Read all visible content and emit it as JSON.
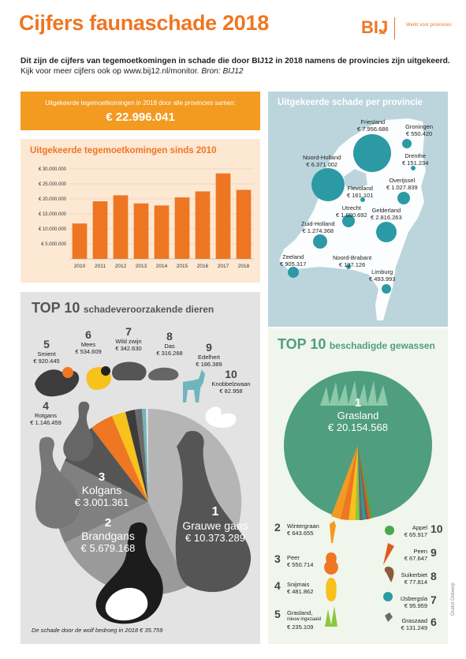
{
  "header": {
    "title": "Cijfers faunaschade 2018",
    "logo_text": "BIJ",
    "logo_sub": "12",
    "tagline": "Werkt voor provincies",
    "intro_line1": "Dit zijn de cijfers van tegemoetkomingen in schade die door BIJ12 in 2018 namens de provincies zijn uitgekeerd.",
    "intro_line2_plain": "Kijk voor meer cijfers ook op www.bij12.nl/monitor.",
    "intro_line2_italic": "Bron: BIJ12"
  },
  "total": {
    "label": "Uitgekeerde tegemoetkomingen in 2018 door alle provincies samen:",
    "value": "€ 22.996.041"
  },
  "colors": {
    "orange": "#ef7622",
    "bar": "#ee7623",
    "teal": "#2b9aa5",
    "green": "#4f9e7f"
  },
  "chart_data": {
    "type": "bar",
    "title": "Uitgekeerde tegemoetkomingen sinds 2010",
    "categories": [
      "2010",
      "2011",
      "2012",
      "2013",
      "2014",
      "2015",
      "2016",
      "2017",
      "2018"
    ],
    "values": [
      11800000,
      19200000,
      21200000,
      18500000,
      17800000,
      20500000,
      22500000,
      28500000,
      23000000
    ],
    "ylim": [
      0,
      30000000
    ],
    "yticks": [
      5000000,
      10000000,
      15000000,
      20000000,
      25000000,
      30000000
    ],
    "ytick_labels": [
      "€ 5.000.000",
      "€ 10.000.000",
      "€ 15.000.000",
      "€ 20.000.000",
      "€ 25.000.000",
      "€ 30.000.000"
    ],
    "grid": true
  },
  "map": {
    "title": "Uitgekeerde schade per provincie",
    "provinces": [
      {
        "name": "Friesland",
        "value": "€ 7.956.686"
      },
      {
        "name": "Groningen",
        "value": "€ 550.420"
      },
      {
        "name": "Drenthe",
        "value": "€ 151.234"
      },
      {
        "name": "Noord-Holland",
        "value": "€ 6.371.002"
      },
      {
        "name": "Flevoland",
        "value": "€ 161.101"
      },
      {
        "name": "Overijssel",
        "value": "€ 1.027.839"
      },
      {
        "name": "Utrecht",
        "value": "€ 1.090.692"
      },
      {
        "name": "Gelderland",
        "value": "€ 2.816.263"
      },
      {
        "name": "Zuid-Holland",
        "value": "€ 1.274.368"
      },
      {
        "name": "Zeeland",
        "value": "€ 905.317"
      },
      {
        "name": "Noord-Brabant",
        "value": "€ 197.126"
      },
      {
        "name": "Limburg",
        "value": "€ 493.993"
      }
    ]
  },
  "animals": {
    "title_bold": "TOP 10",
    "title_rest": "schadeveroorzakende dieren",
    "items": [
      {
        "rank": "1",
        "name": "Grauwe gans",
        "value": "€ 10.373.289"
      },
      {
        "rank": "2",
        "name": "Brandgans",
        "value": "€ 5.679.168"
      },
      {
        "rank": "3",
        "name": "Kolgans",
        "value": "€ 3.001.361"
      },
      {
        "rank": "4",
        "name": "Rotgans",
        "value": "€ 1.146.459"
      },
      {
        "rank": "5",
        "name": "Smient",
        "value": "€ 920.445"
      },
      {
        "rank": "6",
        "name": "Mees",
        "value": "€ 534.609"
      },
      {
        "rank": "7",
        "name": "Wild zwijn",
        "value": "€ 342.630"
      },
      {
        "rank": "8",
        "name": "Das",
        "value": "€ 316.268"
      },
      {
        "rank": "9",
        "name": "Edelhert",
        "value": "€ 186.389"
      },
      {
        "rank": "10",
        "name": "Knobbelzwaan",
        "value": "€ 82.958"
      }
    ],
    "footnote": "De schade door de wolf bedroeg in 2018 € 35.759"
  },
  "crops": {
    "title_bold": "TOP 10",
    "title_rest": "beschadigde gewassen",
    "items": [
      {
        "rank": "1",
        "name": "Grasland",
        "value": "€ 20.154.568"
      },
      {
        "rank": "2",
        "name": "Wintergraan",
        "value": "€ 643.655"
      },
      {
        "rank": "3",
        "name": "Peer",
        "value": "€ 550.714"
      },
      {
        "rank": "4",
        "name": "Snijmais",
        "value": "€ 481.862"
      },
      {
        "rank": "5",
        "name": "Grasland,",
        "name2": "nieuw ingezaaid",
        "value": "€ 235.109"
      },
      {
        "rank": "6",
        "name": "Graszaad",
        "value": "€ 131.249"
      },
      {
        "rank": "7",
        "name": "IJsbergsla",
        "value": "€ 95.959"
      },
      {
        "rank": "8",
        "name": "Suikerbiet",
        "value": "€ 77.814"
      },
      {
        "rank": "9",
        "name": "Peen",
        "value": "€ 67.647"
      },
      {
        "rank": "10",
        "name": "Appel",
        "value": "€ 65.917"
      }
    ],
    "credit": "Ocelot Ontwerp"
  }
}
